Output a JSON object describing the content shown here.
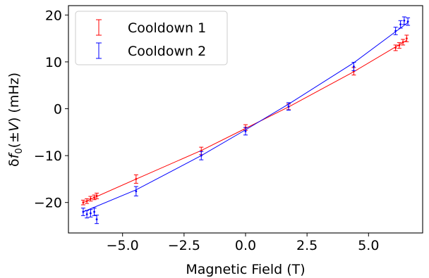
{
  "chart_data": {
    "type": "scatter",
    "xlabel": "Magnetic Field (T)",
    "ylabel_parts": {
      "delta": "δ",
      "f": "f",
      "sub": "0",
      "open": "(±",
      "v": "V",
      "close": ") (mHz)"
    },
    "xlim": [
      -7.2,
      7.2
    ],
    "ylim": [
      -26.5,
      22
    ],
    "xticks": [
      -5.0,
      -2.5,
      0.0,
      2.5,
      5.0
    ],
    "xtick_labels": [
      "−5.0",
      "−2.5",
      "0.0",
      "2.5",
      "5.0"
    ],
    "yticks": [
      -20,
      -10,
      0,
      10,
      20
    ],
    "ytick_labels": [
      "−20",
      "−10",
      "0",
      "10",
      "20"
    ],
    "legend_position": "upper-left",
    "series": [
      {
        "name": "Cooldown 1",
        "color": "#ff0000",
        "x": [
          -6.6,
          -6.45,
          -6.3,
          -6.15,
          -6.05,
          -4.45,
          -1.8,
          0.0,
          1.75,
          4.4,
          6.1,
          6.25,
          6.4,
          6.55
        ],
        "y": [
          -20.0,
          -19.7,
          -19.2,
          -18.9,
          -18.6,
          -15.0,
          -9.0,
          -4.0,
          0.4,
          8.0,
          13.0,
          13.5,
          14.2,
          15.0
        ],
        "yerr": [
          0.5,
          0.5,
          0.5,
          0.5,
          0.6,
          0.9,
          0.8,
          0.6,
          0.6,
          0.8,
          0.6,
          0.6,
          0.6,
          0.7
        ],
        "fit_x": [
          -6.6,
          -4.45,
          -1.8,
          0.0,
          1.75,
          4.4,
          6.55
        ],
        "fit_y": [
          -20.0,
          -15.0,
          -8.9,
          -4.2,
          0.4,
          7.9,
          14.6
        ]
      },
      {
        "name": "Cooldown 2",
        "color": "#0000ff",
        "x": [
          -6.6,
          -6.45,
          -6.3,
          -6.15,
          -6.05,
          -4.45,
          -1.8,
          0.0,
          1.75,
          4.4,
          6.1,
          6.3,
          6.45,
          6.6
        ],
        "y": [
          -22.0,
          -22.5,
          -22.3,
          -22.0,
          -23.6,
          -17.6,
          -10.0,
          -4.8,
          0.5,
          9.0,
          16.6,
          18.0,
          18.8,
          18.6
        ],
        "yerr": [
          0.8,
          0.8,
          0.8,
          0.8,
          0.9,
          1.0,
          0.9,
          0.8,
          0.8,
          0.9,
          0.8,
          0.8,
          0.8,
          0.8
        ],
        "fit_x": [
          -6.6,
          -4.45,
          -1.8,
          0.0,
          1.75,
          4.4,
          6.6
        ],
        "fit_y": [
          -22.0,
          -17.3,
          -10.0,
          -4.5,
          1.0,
          9.8,
          18.4
        ]
      }
    ]
  }
}
